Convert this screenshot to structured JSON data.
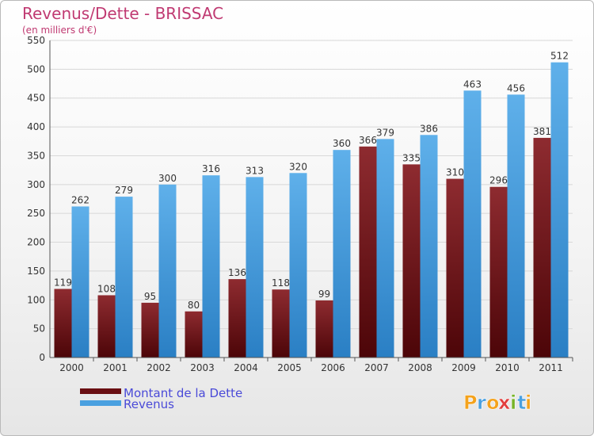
{
  "chart_data": {
    "type": "bar",
    "title": "Revenus/Dette - BRISSAC",
    "subtitle": "(en milliers d'€)",
    "categories": [
      "2000",
      "2001",
      "2002",
      "2003",
      "2004",
      "2005",
      "2006",
      "2007",
      "2008",
      "2009",
      "2010",
      "2011"
    ],
    "series": [
      {
        "name": "Montant de la Dette",
        "color": "#7a1a1e",
        "values": [
          119,
          108,
          95,
          80,
          136,
          118,
          99,
          366,
          335,
          310,
          296,
          381
        ]
      },
      {
        "name": "Revenus",
        "color": "#4aa0e0",
        "values": [
          262,
          279,
          300,
          316,
          313,
          320,
          360,
          379,
          386,
          463,
          456,
          512
        ]
      }
    ],
    "ylim": [
      0,
      550
    ],
    "yticks": [
      0,
      50,
      100,
      150,
      200,
      250,
      300,
      350,
      400,
      450,
      500,
      550
    ],
    "grid": true,
    "legend_position": "bottom-left"
  },
  "branding": {
    "logo_letters": [
      "P",
      "r",
      "o",
      "x",
      "i",
      "t",
      "i"
    ],
    "logo_colors": [
      "#f4a21c",
      "#4aa0e0",
      "#f4a21c",
      "#e23d3d",
      "#78b428",
      "#4aa0e0",
      "#f4a21c"
    ]
  }
}
